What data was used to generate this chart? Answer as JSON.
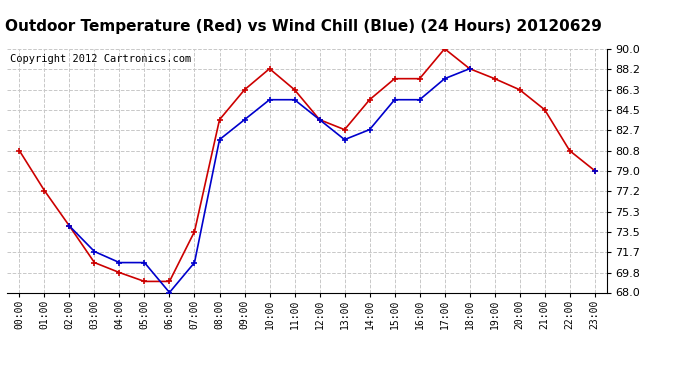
{
  "title": "Outdoor Temperature (Red) vs Wind Chill (Blue) (24 Hours) 20120629",
  "copyright": "Copyright 2012 Cartronics.com",
  "x_labels": [
    "00:00",
    "01:00",
    "02:00",
    "03:00",
    "04:00",
    "05:00",
    "06:00",
    "07:00",
    "08:00",
    "09:00",
    "10:00",
    "11:00",
    "12:00",
    "13:00",
    "14:00",
    "15:00",
    "16:00",
    "17:00",
    "18:00",
    "19:00",
    "20:00",
    "21:00",
    "22:00",
    "23:00"
  ],
  "temp_red": [
    80.8,
    77.2,
    74.0,
    70.7,
    69.8,
    69.0,
    69.0,
    73.5,
    83.6,
    86.3,
    88.2,
    86.3,
    83.6,
    82.7,
    85.4,
    87.3,
    87.3,
    90.0,
    88.2,
    87.3,
    86.3,
    84.5,
    80.8,
    79.0
  ],
  "wind_blue": [
    null,
    null,
    74.0,
    71.7,
    70.7,
    70.7,
    68.0,
    70.7,
    81.8,
    83.6,
    85.4,
    85.4,
    83.6,
    81.8,
    82.7,
    85.4,
    85.4,
    87.3,
    88.2,
    null,
    null,
    null,
    null,
    79.0
  ],
  "ylim_min": 68.0,
  "ylim_max": 90.0,
  "y_ticks": [
    68.0,
    69.8,
    71.7,
    73.5,
    75.3,
    77.2,
    79.0,
    80.8,
    82.7,
    84.5,
    86.3,
    88.2,
    90.0
  ],
  "bg_color": "#ffffff",
  "grid_color": "#c8c8c8",
  "red_color": "#cc0000",
  "blue_color": "#0000cc",
  "title_fontsize": 11,
  "copyright_fontsize": 7.5
}
